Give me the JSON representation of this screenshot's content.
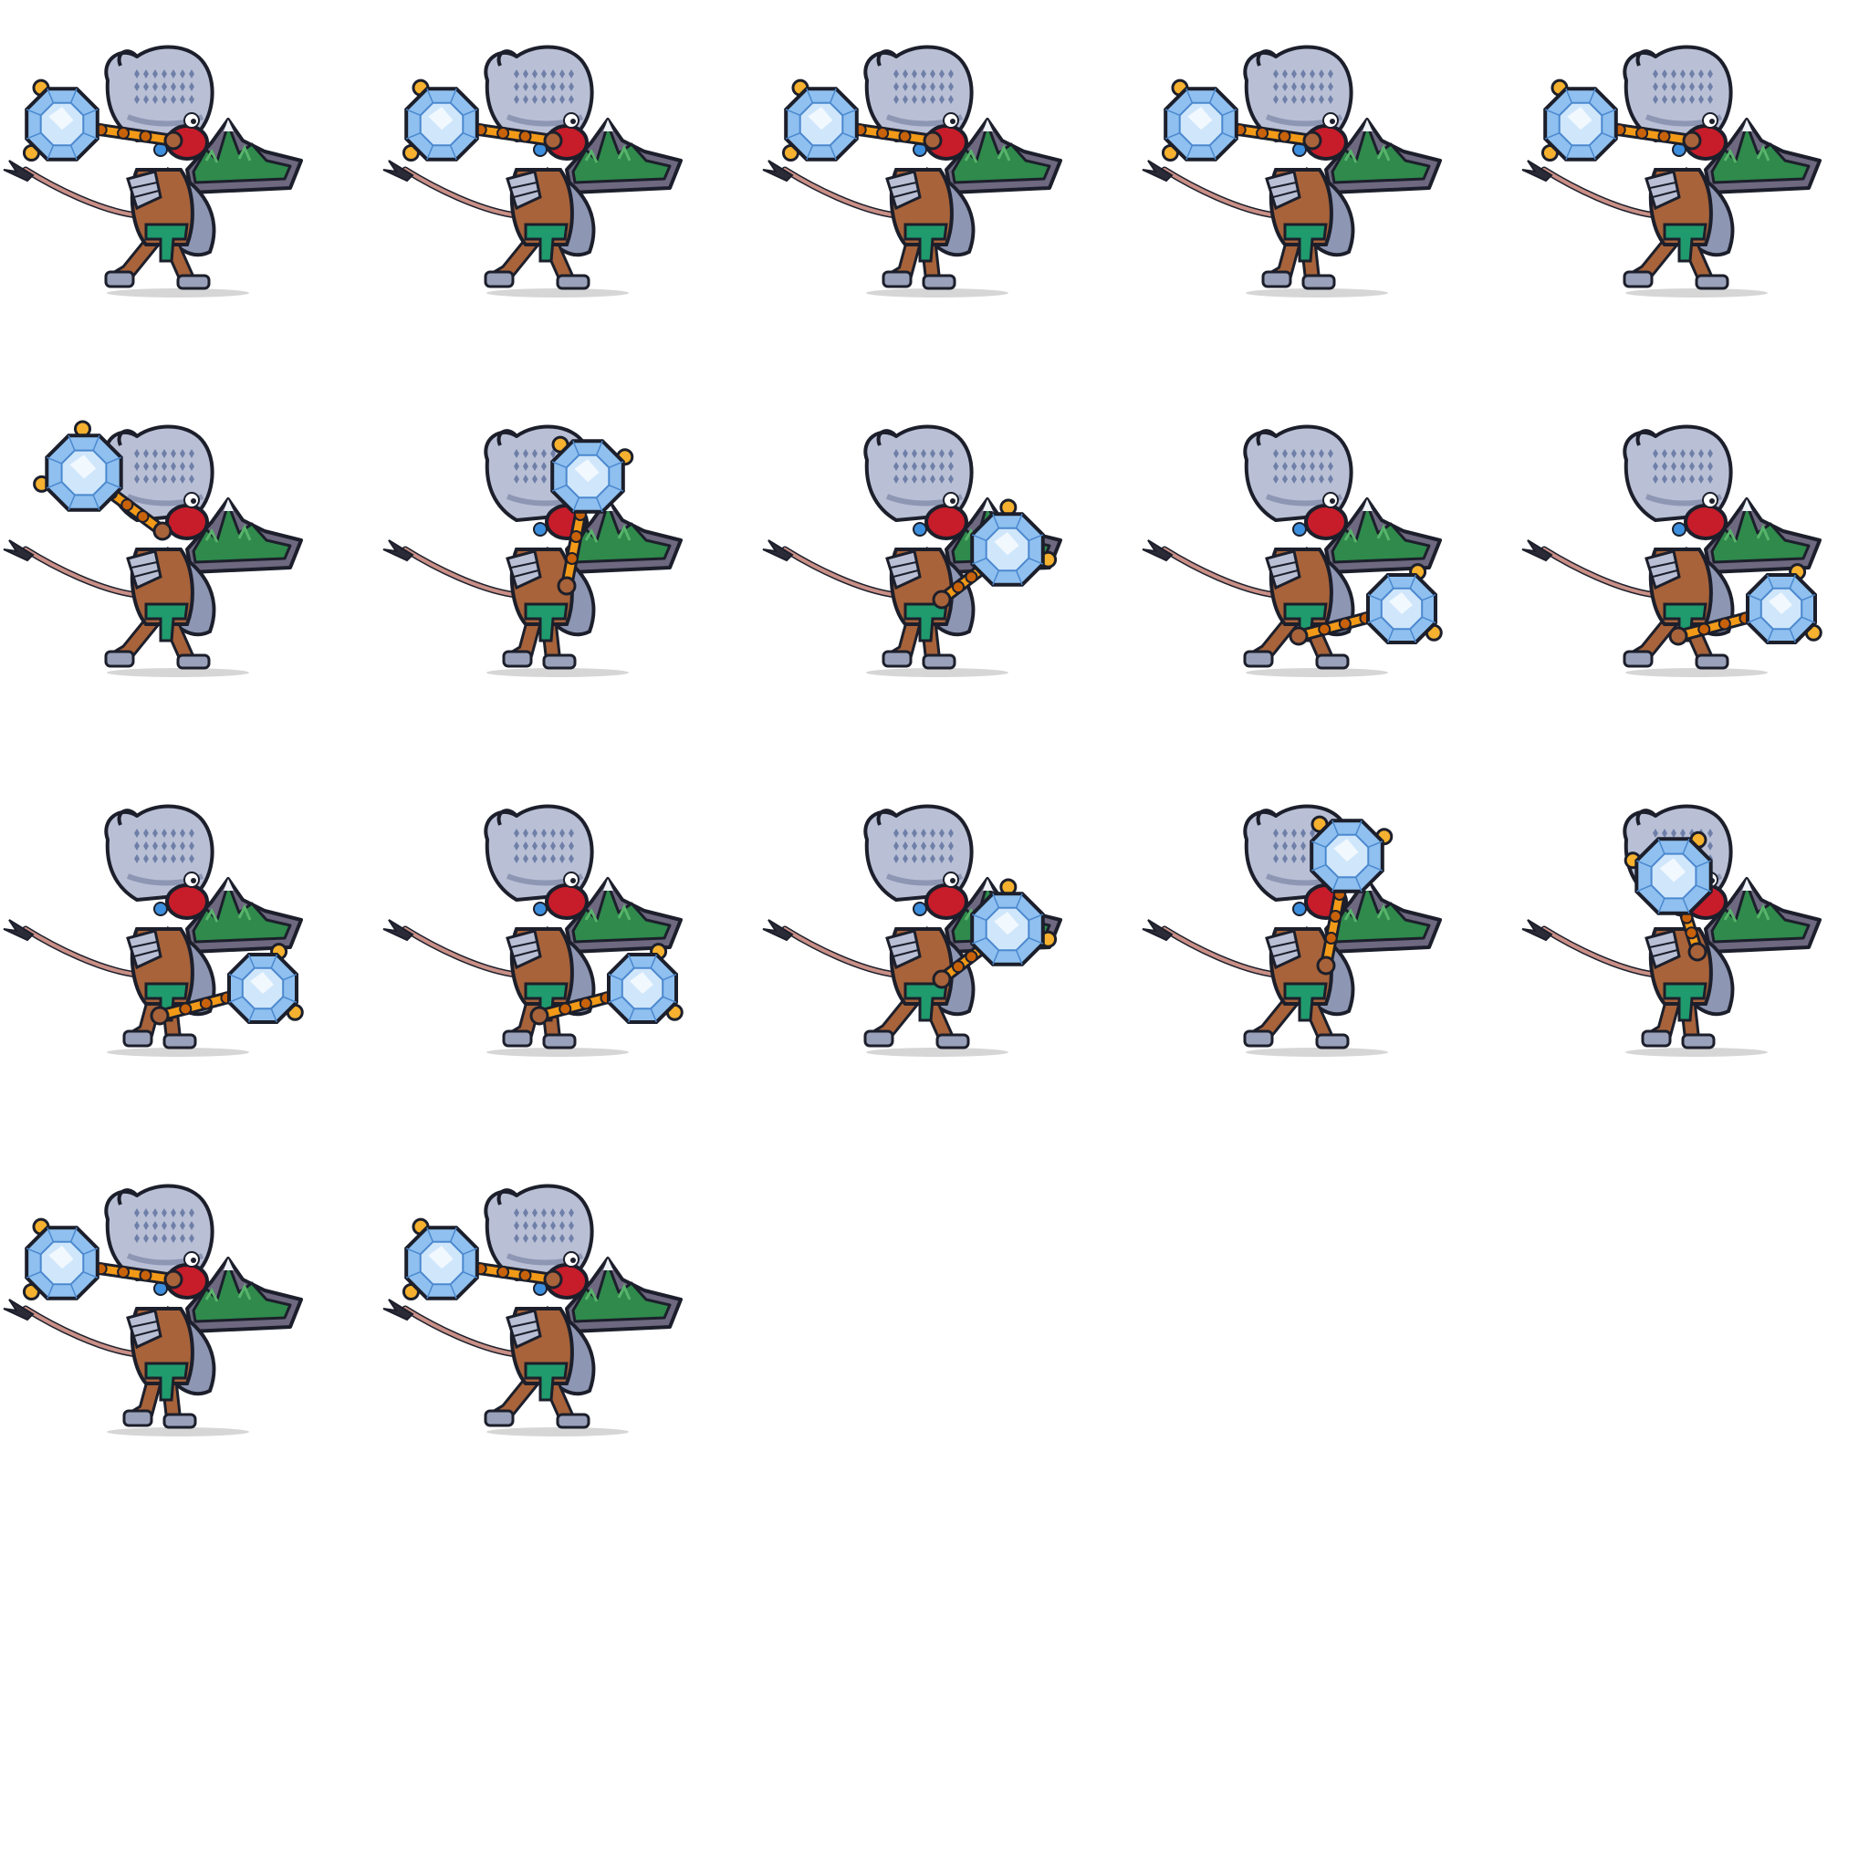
{
  "sprite_sheet": {
    "columns": 5,
    "rows_used": 4,
    "frame_count": 17,
    "background": "#ffffff",
    "colors": {
      "outline": "#1c1f2b",
      "helmet": "#b9c0d6",
      "helmet_shade": "#8d96b3",
      "helmet_spot": "#6f7fa8",
      "gem_blue": "#3d8fdd",
      "face": "#c71c2a",
      "skin": "#a8633a",
      "mace_handle": "#f29a18",
      "mace_dark": "#c8620a",
      "mountain": "#2f8a4c",
      "mountain_light": "#58b36b",
      "rock": "#6e6880",
      "snow": "#eef2f7",
      "crystal": "#cfe6fb",
      "crystal_mid": "#8fc0ef",
      "crystal_dark": "#4b88cf",
      "crystal_spike": "#f5b12f",
      "sash": "#1f9b6e",
      "boots": "#9aa1ba",
      "tail": "#c98f86",
      "tail_tip": "#2b2b38",
      "shadow": "#d6d6d6"
    },
    "character": "monkey-warrior-icon",
    "mace_pose_sequence": [
      "shoulder-back",
      "shoulder-back",
      "shoulder-back",
      "shoulder-back",
      "shoulder-back",
      "raised-back",
      "overhead",
      "swing-forward",
      "low-forward",
      "low-forward",
      "low-forward",
      "low-forward",
      "swing-forward",
      "overhead",
      "raised-front",
      "shoulder-back",
      "shoulder-back"
    ]
  }
}
